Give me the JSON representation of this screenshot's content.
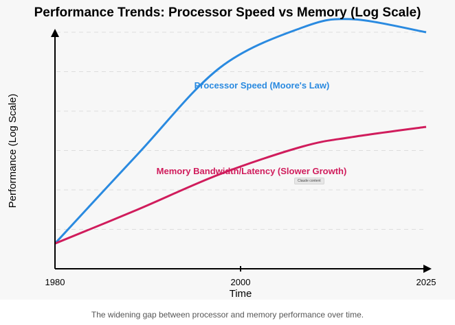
{
  "chart_data": {
    "type": "line",
    "title": "Performance Trends: Processor Speed vs Memory (Log Scale)",
    "xlabel": "Time",
    "ylabel": "Performance (Log Scale)",
    "x_ticks": [
      "1980",
      "2000",
      "2025"
    ],
    "xlim": [
      1980,
      2025
    ],
    "ylim": [
      0,
      6.5
    ],
    "grid": "horizontal dashed",
    "x": [
      1980,
      1990,
      2000,
      2010,
      2016,
      2025
    ],
    "series": [
      {
        "name": "Processor Speed (Moore's Law)",
        "color": "#2a8ae0",
        "values": [
          0.64,
          2.9,
          5.1,
          6.12,
          6.33,
          6.0
        ]
      },
      {
        "name": "Memory Bandwidth/Latency (Slower Growth)",
        "color": "#d01c5c",
        "values": [
          0.64,
          1.5,
          2.4,
          3.1,
          3.34,
          3.6
        ]
      }
    ]
  },
  "badge": "Claude content",
  "caption": "The widening gap between processor and memory performance over time."
}
